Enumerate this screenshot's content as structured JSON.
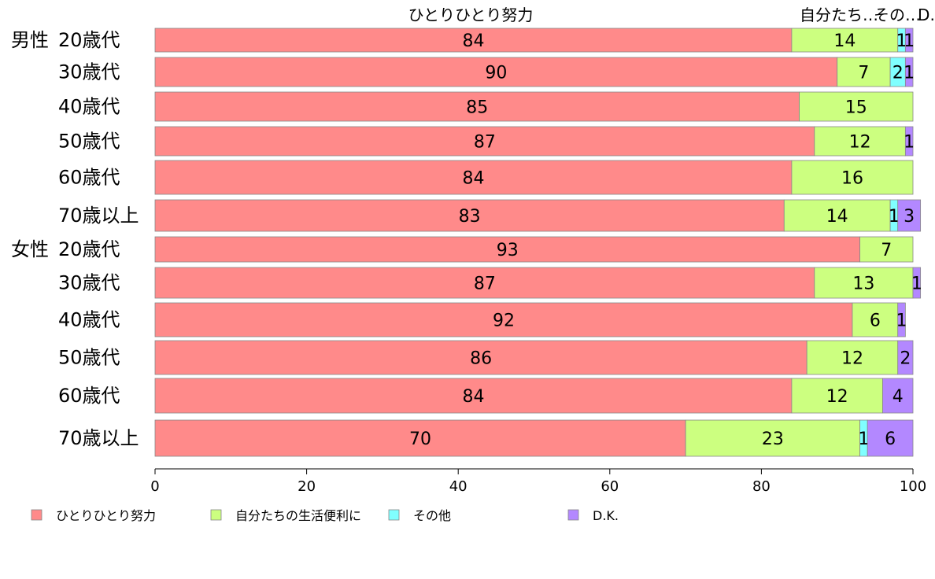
{
  "chart_data": {
    "type": "bar",
    "orientation": "horizontal",
    "stacked": true,
    "xlim": [
      0,
      100
    ],
    "xticks": [
      "0",
      "20",
      "40",
      "60",
      "80",
      "100"
    ],
    "top_labels": [
      "ひとりひとり努力",
      "自分たち…",
      "その…",
      "D…"
    ],
    "categories": [
      {
        "group": "男性",
        "label": "20歳代"
      },
      {
        "group": "",
        "label": "30歳代"
      },
      {
        "group": "",
        "label": "40歳代"
      },
      {
        "group": "",
        "label": "50歳代"
      },
      {
        "group": "",
        "label": "60歳代"
      },
      {
        "group": "",
        "label": "70歳以上"
      },
      {
        "group": "女性",
        "label": "20歳代"
      },
      {
        "group": "",
        "label": "30歳代"
      },
      {
        "group": "",
        "label": "40歳代"
      },
      {
        "group": "",
        "label": "50歳代"
      },
      {
        "group": "",
        "label": "60歳代"
      },
      {
        "group": "",
        "label": "70歳以上"
      }
    ],
    "series": [
      {
        "name": "ひとりひとり努力",
        "color": "#ff8a8a",
        "values": [
          84,
          90,
          85,
          87,
          84,
          83,
          93,
          87,
          92,
          86,
          84,
          70
        ]
      },
      {
        "name": "自分たちの生活便利に",
        "color": "#ccff80",
        "values": [
          14,
          7,
          15,
          12,
          16,
          14,
          7,
          13,
          6,
          12,
          12,
          23
        ]
      },
      {
        "name": "その他",
        "color": "#80ffff",
        "values": [
          1,
          2,
          0,
          0,
          0,
          1,
          0,
          0,
          0,
          0,
          0,
          1
        ]
      },
      {
        "name": "D.K.",
        "color": "#b388ff",
        "values": [
          1,
          1,
          0,
          1,
          0,
          3,
          0,
          1,
          1,
          2,
          4,
          6
        ]
      }
    ]
  }
}
